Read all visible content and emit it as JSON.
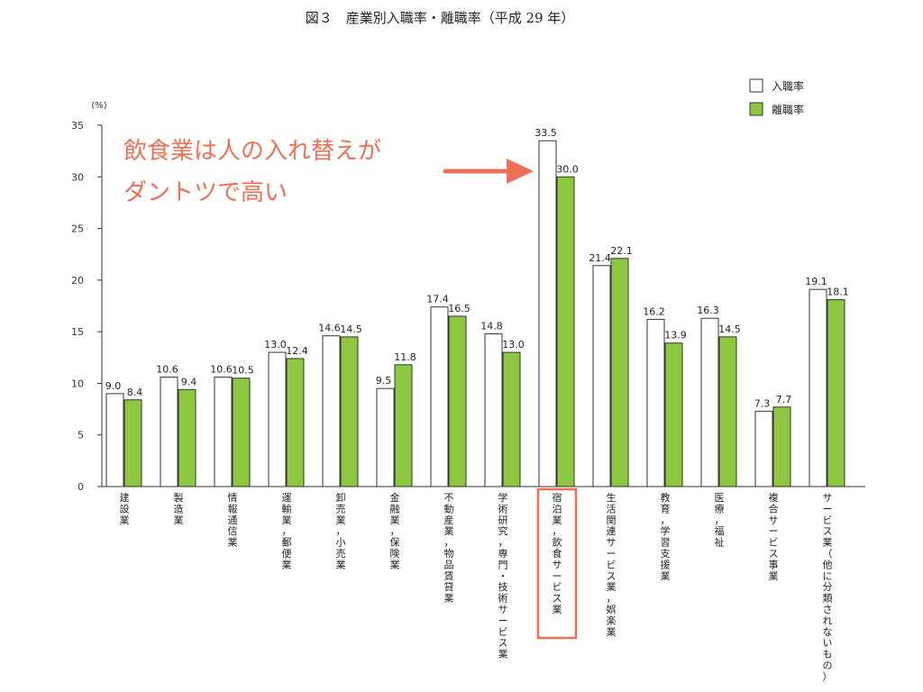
{
  "chart_data": {
    "type": "bar",
    "title": "図３　産業別入職率・離職率（平成 29 年）",
    "ylabel": "(%)",
    "ylim": [
      0,
      35
    ],
    "yticks": [
      "0",
      "5",
      "10",
      "15",
      "20",
      "25",
      "30",
      "35"
    ],
    "categories": [
      "建設業",
      "製造業",
      "情報通信業",
      "運輸業，郵便業",
      "卸売業，小売業",
      "金融業，保険業",
      "不動産業，物品賃貸業",
      "学術研究，専門・技術サービス業",
      "宿泊業，飲食サービス業",
      "生活関連サービス業，娯楽業",
      "教育，学習支援業",
      "医療，福祉",
      "複合サービス事業",
      "サービス業（他に分類されないもの）"
    ],
    "series": [
      {
        "name": "入職率",
        "color": "#ffffff",
        "values": [
          9.0,
          10.6,
          10.6,
          13.0,
          14.6,
          9.5,
          17.4,
          14.8,
          33.5,
          21.4,
          16.2,
          16.3,
          7.3,
          19.1
        ],
        "labels": [
          "9.0",
          "10.6",
          "10.6",
          "13.0",
          "14.6",
          "9.5",
          "17.4",
          "14.8",
          "33.5",
          "21.4",
          "16.2",
          "16.3",
          "7.3",
          "19.1"
        ]
      },
      {
        "name": "離職率",
        "color": "#8dc63f",
        "values": [
          8.4,
          9.4,
          10.5,
          12.4,
          14.5,
          11.8,
          16.5,
          13.0,
          30.0,
          22.1,
          13.9,
          14.5,
          7.7,
          18.1
        ],
        "labels": [
          "8.4",
          "9.4",
          "10.5",
          "12.4",
          "14.5",
          "11.8",
          "16.5",
          "13.0",
          "30.0",
          "22.1",
          "13.9",
          "14.5",
          "7.7",
          "18.1"
        ]
      }
    ],
    "legend_position": "top-right",
    "highlight_category_index": 8,
    "highlight_color": "#ee6f55",
    "annotation": {
      "lines": [
        "飲食業は人の入れ替えが",
        "ダントツで高い"
      ]
    }
  }
}
